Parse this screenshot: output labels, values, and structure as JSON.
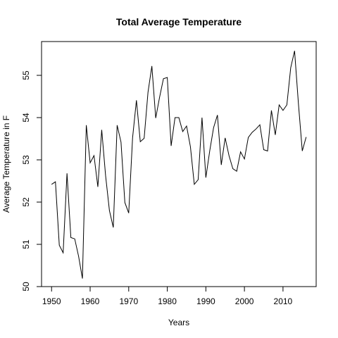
{
  "chart_data": {
    "type": "line",
    "title": "Total Average Temperature",
    "xlabel": "Years",
    "ylabel": "Average Temperature in F",
    "xlim": [
      1947.4,
      2018.6
    ],
    "ylim": [
      50.0,
      55.8
    ],
    "xticks": [
      1950,
      1960,
      1970,
      1980,
      1990,
      2000,
      2010
    ],
    "yticks": [
      50,
      51,
      52,
      53,
      54,
      55
    ],
    "grid": false,
    "line_color": "#000000",
    "series": [
      {
        "x": [
          1950,
          1951,
          1952,
          1953,
          1954,
          1955,
          1956,
          1957,
          1958,
          1959,
          1960,
          1961,
          1962,
          1963,
          1964,
          1965,
          1966,
          1967,
          1968,
          1969,
          1970,
          1971,
          1972,
          1973,
          1974,
          1975,
          1976,
          1977,
          1978,
          1979,
          1980,
          1981,
          1982,
          1983,
          1984,
          1985,
          1986,
          1987,
          1988,
          1989,
          1990,
          1991,
          1992,
          1993,
          1994,
          1995,
          1996,
          1997,
          1998,
          1999,
          2000,
          2001,
          2002,
          2003,
          2004,
          2005,
          2006,
          2007,
          2008,
          2009,
          2010,
          2011,
          2012,
          2013,
          2014,
          2015,
          2016
        ],
        "values": [
          52.42,
          52.48,
          50.98,
          50.8,
          52.68,
          51.16,
          51.13,
          50.72,
          50.19,
          53.82,
          52.93,
          53.1,
          52.36,
          53.71,
          52.63,
          51.8,
          51.4,
          53.82,
          53.42,
          51.99,
          51.74,
          53.52,
          54.41,
          53.43,
          53.51,
          54.6,
          55.22,
          53.99,
          54.48,
          54.92,
          54.95,
          53.33,
          54.0,
          54.0,
          53.67,
          53.8,
          53.31,
          52.42,
          52.53,
          54.0,
          52.58,
          53.21,
          53.76,
          54.06,
          52.88,
          53.52,
          53.1,
          52.79,
          52.73,
          53.19,
          53.02,
          53.53,
          53.65,
          53.73,
          53.83,
          53.24,
          53.21,
          54.17,
          53.59,
          54.3,
          54.17,
          54.3,
          55.18,
          55.58,
          54.33,
          53.21,
          53.54
        ]
      }
    ]
  }
}
